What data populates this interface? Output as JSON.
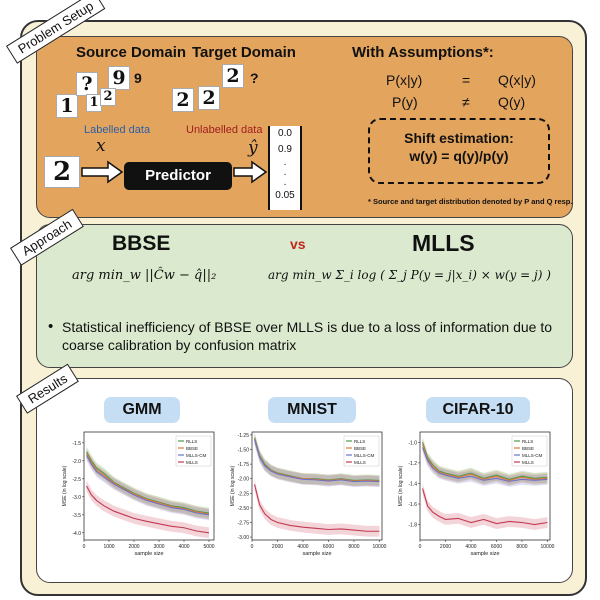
{
  "sections": {
    "problem_setup_tag": "Problem Setup",
    "approach_tag": "Approach",
    "results_tag": "Results"
  },
  "problem": {
    "source_title": "Source Domain",
    "target_title": "Target Domain",
    "source_digits": [
      "1",
      "?",
      "9",
      "1",
      "2"
    ],
    "source_extra": "9",
    "target_digits": [
      "2",
      "2",
      "2"
    ],
    "target_extra": "?",
    "labelled": "Labelled data",
    "unlabelled": "Unlabelled data",
    "input_digit": "2",
    "x_symbol": "x",
    "predictor": "Predictor",
    "yhat_symbol": "ŷ",
    "vector": [
      "0.0",
      "0.9",
      ".",
      ".",
      ".",
      "0.05"
    ],
    "assumptions_title": "With Assumptions*:",
    "assumption_rows": [
      {
        "lhs": "P(x|y)",
        "op": "=",
        "rhs": "Q(x|y)"
      },
      {
        "lhs": "P(y)",
        "op": "≠",
        "rhs": "Q(y)"
      }
    ],
    "shift_title": "Shift estimation:",
    "shift_formula": "w(y) = q(y)/p(y)",
    "footnote": "* Source and target distribution denoted by P and Q  resp."
  },
  "approach": {
    "bbse": "BBSE",
    "vs": "vs",
    "mlls": "MLLS",
    "bbse_formula": "arg min_w ||Ĉw − q̂||₂",
    "mlls_formula": "arg min_w Σ_i log ( Σ_j P(y = j|x_i) × w(y = j) )",
    "bullet": "Statistical inefficiency of BBSE over MLLS is due to a loss of information due to coarse calibration by confusion matrix"
  },
  "chart_data": [
    {
      "type": "line",
      "title": "GMM",
      "xlabel": "sample size",
      "ylabel": "MSE (in log scale)",
      "xlim": [
        0,
        5200
      ],
      "ylim": [
        -4.2,
        -1.2
      ],
      "xticks": [
        "0",
        "1000",
        "2000",
        "3000",
        "4000",
        "5000"
      ],
      "yticks": [
        "-1.5",
        "-2.0",
        "-2.5",
        "-3.0",
        "-3.5",
        "-4.0"
      ],
      "legend": [
        "RLLS",
        "BBSE",
        "MLLS-CM",
        "MLLS"
      ],
      "series": [
        {
          "name": "RLLS",
          "color": "#4f9a4a",
          "x": [
            100,
            300,
            500,
            800,
            1200,
            1600,
            2000,
            2500,
            3000,
            3500,
            4000,
            4500,
            5000
          ],
          "y": [
            -1.75,
            -2.0,
            -2.2,
            -2.35,
            -2.6,
            -2.75,
            -2.9,
            -3.05,
            -3.15,
            -3.25,
            -3.3,
            -3.4,
            -3.45
          ]
        },
        {
          "name": "BBSE",
          "color": "#e07b39",
          "x": [
            100,
            300,
            500,
            800,
            1200,
            1600,
            2000,
            2500,
            3000,
            3500,
            4000,
            4500,
            5000
          ],
          "y": [
            -1.8,
            -2.05,
            -2.25,
            -2.4,
            -2.62,
            -2.78,
            -2.92,
            -3.07,
            -3.17,
            -3.27,
            -3.33,
            -3.42,
            -3.48
          ]
        },
        {
          "name": "MLLS-CM",
          "color": "#6f6fc8",
          "x": [
            100,
            300,
            500,
            800,
            1200,
            1600,
            2000,
            2500,
            3000,
            3500,
            4000,
            4500,
            5000
          ],
          "y": [
            -1.85,
            -2.1,
            -2.3,
            -2.45,
            -2.65,
            -2.8,
            -2.95,
            -3.1,
            -3.2,
            -3.3,
            -3.35,
            -3.45,
            -3.5
          ]
        },
        {
          "name": "MLLS",
          "color": "#c23a52",
          "x": [
            100,
            300,
            500,
            800,
            1200,
            1600,
            2000,
            2500,
            3000,
            3500,
            4000,
            4500,
            5000
          ],
          "y": [
            -2.7,
            -2.95,
            -3.1,
            -3.25,
            -3.4,
            -3.5,
            -3.6,
            -3.68,
            -3.75,
            -3.82,
            -3.86,
            -3.95,
            -4.0
          ]
        }
      ]
    },
    {
      "type": "line",
      "title": "MNIST",
      "xlabel": "sample size",
      "ylabel": "MSE (in log scale)",
      "xlim": [
        0,
        10200
      ],
      "ylim": [
        -3.05,
        -1.2
      ],
      "xticks": [
        "0",
        "2000",
        "4000",
        "6000",
        "8000",
        "10000"
      ],
      "yticks": [
        "-1.25",
        "-1.50",
        "-1.75",
        "-2.00",
        "-2.25",
        "-2.50",
        "-2.75",
        "-3.00"
      ],
      "legend": [
        "RLLS",
        "BBSE",
        "MLLS-CM",
        "MLLS"
      ],
      "series": [
        {
          "name": "RLLS",
          "color": "#4f9a4a",
          "x": [
            200,
            600,
            1000,
            1500,
            2000,
            3000,
            4000,
            5000,
            6000,
            7000,
            8000,
            9000,
            10000
          ],
          "y": [
            -1.3,
            -1.6,
            -1.75,
            -1.85,
            -1.9,
            -1.95,
            -2.0,
            -2.0,
            -2.02,
            -2.0,
            -2.03,
            -2.02,
            -2.03
          ]
        },
        {
          "name": "BBSE",
          "color": "#e07b39",
          "x": [
            200,
            600,
            1000,
            1500,
            2000,
            3000,
            4000,
            5000,
            6000,
            7000,
            8000,
            9000,
            10000
          ],
          "y": [
            -1.32,
            -1.62,
            -1.77,
            -1.86,
            -1.91,
            -1.96,
            -2.0,
            -2.01,
            -2.03,
            -2.01,
            -2.04,
            -2.03,
            -2.04
          ]
        },
        {
          "name": "MLLS-CM",
          "color": "#6f6fc8",
          "x": [
            200,
            600,
            1000,
            1500,
            2000,
            3000,
            4000,
            5000,
            6000,
            7000,
            8000,
            9000,
            10000
          ],
          "y": [
            -1.33,
            -1.63,
            -1.78,
            -1.87,
            -1.92,
            -1.97,
            -2.01,
            -2.02,
            -2.04,
            -2.02,
            -2.05,
            -2.04,
            -2.05
          ]
        },
        {
          "name": "MLLS",
          "color": "#c23a52",
          "x": [
            200,
            600,
            1000,
            1500,
            2000,
            3000,
            4000,
            5000,
            6000,
            7000,
            8000,
            9000,
            10000
          ],
          "y": [
            -2.1,
            -2.45,
            -2.6,
            -2.7,
            -2.75,
            -2.8,
            -2.83,
            -2.85,
            -2.87,
            -2.86,
            -2.88,
            -2.9,
            -2.9
          ]
        }
      ]
    },
    {
      "type": "line",
      "title": "CIFAR-10",
      "xlabel": "sample size",
      "ylabel": "MSE (in log scale)",
      "xlim": [
        0,
        10200
      ],
      "ylim": [
        -1.95,
        -0.9
      ],
      "xticks": [
        "0",
        "2000",
        "4000",
        "6000",
        "8000",
        "10000"
      ],
      "yticks": [
        "-1.0",
        "-1.2",
        "-1.4",
        "-1.6",
        "-1.8"
      ],
      "legend": [
        "RLLS",
        "BBSE",
        "MLLS-CM",
        "MLLS"
      ],
      "series": [
        {
          "name": "RLLS",
          "color": "#4f9a4a",
          "x": [
            200,
            600,
            1000,
            1500,
            2000,
            3000,
            4000,
            5000,
            6000,
            7000,
            8000,
            9000,
            10000
          ],
          "y": [
            -1.0,
            -1.15,
            -1.22,
            -1.28,
            -1.3,
            -1.33,
            -1.3,
            -1.35,
            -1.32,
            -1.36,
            -1.33,
            -1.35,
            -1.34
          ]
        },
        {
          "name": "BBSE",
          "color": "#e07b39",
          "x": [
            200,
            600,
            1000,
            1500,
            2000,
            3000,
            4000,
            5000,
            6000,
            7000,
            8000,
            9000,
            10000
          ],
          "y": [
            -1.02,
            -1.17,
            -1.23,
            -1.29,
            -1.31,
            -1.34,
            -1.31,
            -1.36,
            -1.33,
            -1.37,
            -1.34,
            -1.36,
            -1.35
          ]
        },
        {
          "name": "MLLS-CM",
          "color": "#6f6fc8",
          "x": [
            200,
            600,
            1000,
            1500,
            2000,
            3000,
            4000,
            5000,
            6000,
            7000,
            8000,
            9000,
            10000
          ],
          "y": [
            -1.05,
            -1.18,
            -1.25,
            -1.3,
            -1.32,
            -1.35,
            -1.33,
            -1.37,
            -1.35,
            -1.38,
            -1.36,
            -1.37,
            -1.36
          ]
        },
        {
          "name": "MLLS",
          "color": "#c23a52",
          "x": [
            200,
            600,
            1000,
            1500,
            2000,
            3000,
            4000,
            5000,
            6000,
            7000,
            8000,
            9000,
            10000
          ],
          "y": [
            -1.45,
            -1.62,
            -1.68,
            -1.72,
            -1.75,
            -1.74,
            -1.78,
            -1.75,
            -1.79,
            -1.77,
            -1.78,
            -1.8,
            -1.78
          ]
        }
      ]
    }
  ]
}
